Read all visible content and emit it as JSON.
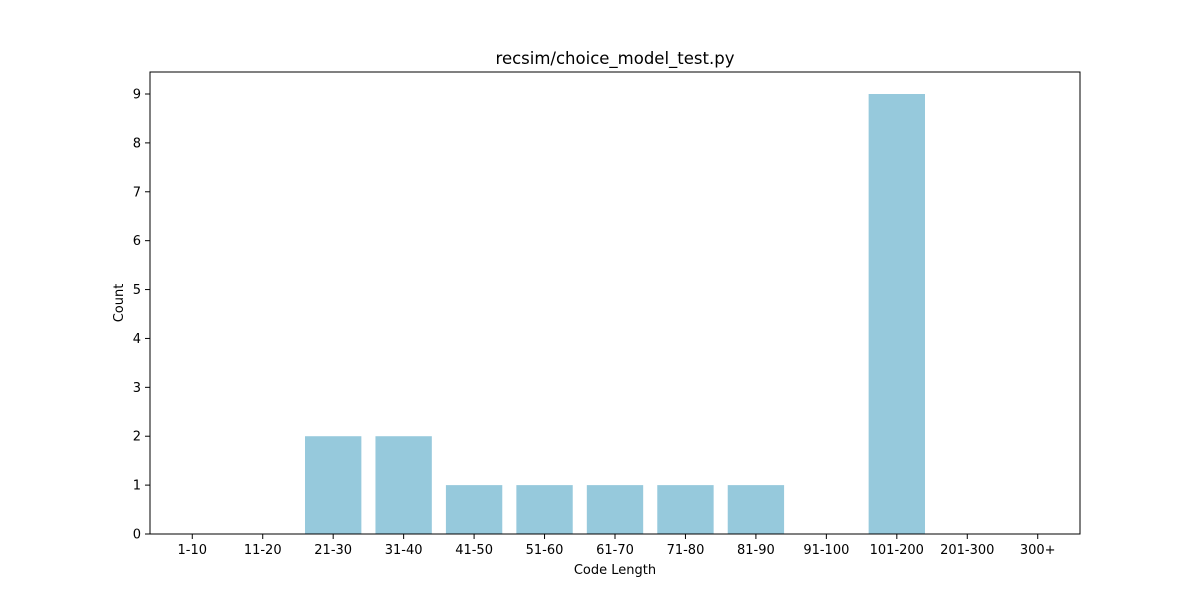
{
  "chart_data": {
    "type": "bar",
    "title": "recsim/choice_model_test.py",
    "xlabel": "Code Length",
    "ylabel": "Count",
    "categories": [
      "1-10",
      "11-20",
      "21-30",
      "31-40",
      "41-50",
      "51-60",
      "61-70",
      "71-80",
      "81-90",
      "91-100",
      "101-200",
      "201-300",
      "300+"
    ],
    "values": [
      0,
      0,
      2,
      2,
      1,
      1,
      1,
      1,
      1,
      0,
      9,
      0,
      0
    ],
    "ylim": [
      0,
      9.45
    ],
    "yticks": [
      0,
      1,
      2,
      3,
      4,
      5,
      6,
      7,
      8,
      9
    ],
    "bar_color": "#96c9dc",
    "grid": false,
    "legend": "none"
  }
}
